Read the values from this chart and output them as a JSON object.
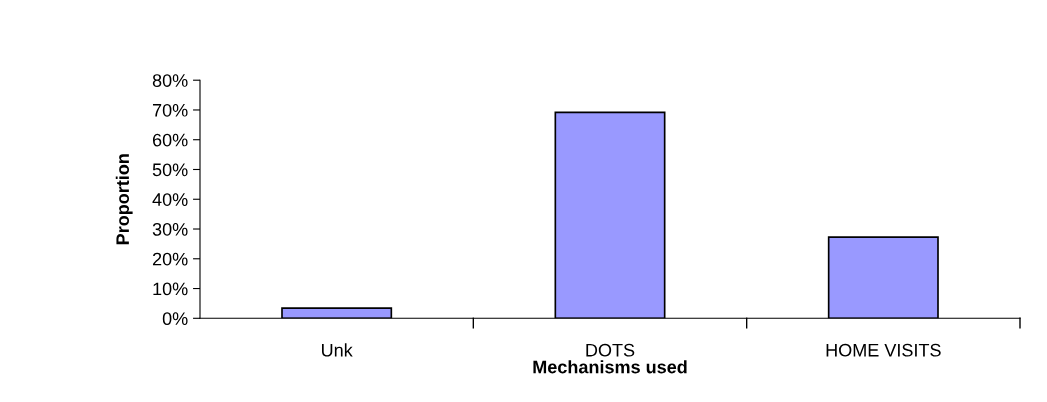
{
  "chart_data": {
    "type": "bar",
    "xlabel": "Mechanisms used",
    "ylabel": "Proportion",
    "categories": [
      "Unk",
      "DOTS",
      "HOME VISITS"
    ],
    "values": [
      3.4,
      69.2,
      27.3
    ],
    "color": "#9999ff",
    "ylim": [
      0,
      80
    ],
    "yticks": [
      {
        "value": 0,
        "label": "0%"
      },
      {
        "value": 10,
        "label": "10%"
      },
      {
        "value": 20,
        "label": "20%"
      },
      {
        "value": 30,
        "label": "30%"
      },
      {
        "value": 40,
        "label": "40%"
      },
      {
        "value": 50,
        "label": "50%"
      },
      {
        "value": 60,
        "label": "60%"
      },
      {
        "value": 70,
        "label": "70%"
      },
      {
        "value": 80,
        "label": "80%"
      }
    ],
    "grid": false,
    "legend": false
  }
}
